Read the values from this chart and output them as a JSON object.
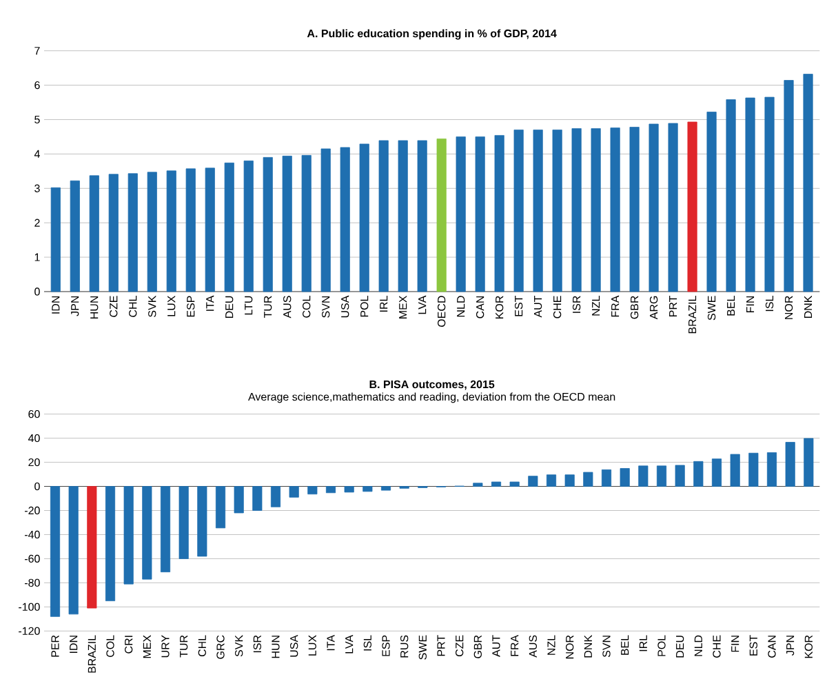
{
  "chart_data": [
    {
      "type": "bar",
      "title": "A. Public education spending in % of GDP, 2014",
      "categories": [
        "IDN",
        "JPN",
        "HUN",
        "CZE",
        "CHL",
        "SVK",
        "LUX",
        "ESP",
        "ITA",
        "DEU",
        "LTU",
        "TUR",
        "AUS",
        "COL",
        "SVN",
        "USA",
        "POL",
        "IRL",
        "MEX",
        "LVA",
        "OECD",
        "NLD",
        "CAN",
        "KOR",
        "EST",
        "AUT",
        "CHE",
        "ISR",
        "NZL",
        "FRA",
        "GBR",
        "ARG",
        "PRT",
        "BRAZIL",
        "SWE",
        "BEL",
        "FIN",
        "ISL",
        "NOR",
        "DNK"
      ],
      "values": [
        3.02,
        3.22,
        3.37,
        3.41,
        3.43,
        3.47,
        3.51,
        3.57,
        3.59,
        3.74,
        3.8,
        3.9,
        3.94,
        3.96,
        4.15,
        4.19,
        4.29,
        4.39,
        4.39,
        4.39,
        4.44,
        4.5,
        4.5,
        4.54,
        4.7,
        4.7,
        4.7,
        4.74,
        4.74,
        4.76,
        4.78,
        4.87,
        4.89,
        4.93,
        5.22,
        5.58,
        5.63,
        5.65,
        6.14,
        6.32
      ],
      "colors": [
        "#1f6fb0",
        "#1f6fb0",
        "#1f6fb0",
        "#1f6fb0",
        "#1f6fb0",
        "#1f6fb0",
        "#1f6fb0",
        "#1f6fb0",
        "#1f6fb0",
        "#1f6fb0",
        "#1f6fb0",
        "#1f6fb0",
        "#1f6fb0",
        "#1f6fb0",
        "#1f6fb0",
        "#1f6fb0",
        "#1f6fb0",
        "#1f6fb0",
        "#1f6fb0",
        "#1f6fb0",
        "#8cc63f",
        "#1f6fb0",
        "#1f6fb0",
        "#1f6fb0",
        "#1f6fb0",
        "#1f6fb0",
        "#1f6fb0",
        "#1f6fb0",
        "#1f6fb0",
        "#1f6fb0",
        "#1f6fb0",
        "#1f6fb0",
        "#1f6fb0",
        "#e0262a",
        "#1f6fb0",
        "#1f6fb0",
        "#1f6fb0",
        "#1f6fb0",
        "#1f6fb0",
        "#1f6fb0"
      ],
      "ylim": [
        0,
        7
      ],
      "yticks": [
        0,
        1,
        2,
        3,
        4,
        5,
        6,
        7
      ],
      "grid": "y"
    },
    {
      "type": "bar",
      "title": "B. PISA  outcomes,  2015",
      "subtitle": "Average science,mathematics and reading, deviation from the OECD mean",
      "categories": [
        "PER",
        "IDN",
        "BRAZIL",
        "COL",
        "CRI",
        "MEX",
        "URY",
        "TUR",
        "CHL",
        "GRC",
        "SVK",
        "ISR",
        "HUN",
        "USA",
        "LUX",
        "ITA",
        "LVA",
        "ISL",
        "ESP",
        "RUS",
        "SWE",
        "PRT",
        "CZE",
        "GBR",
        "AUT",
        "FRA",
        "AUS",
        "NZL",
        "NOR",
        "DNK",
        "SVN",
        "BEL",
        "IRL",
        "POL",
        "DEU",
        "NLD",
        "CHE",
        "FIN",
        "EST",
        "CAN",
        "JPN",
        "KOR"
      ],
      "values": [
        -108,
        -106,
        -101,
        -95,
        -81,
        -77,
        -71,
        -60,
        -58,
        -34.5,
        -22,
        -20,
        -17,
        -9,
        -6.4,
        -5.3,
        -4.8,
        -4.2,
        -3.2,
        -1.6,
        -1.1,
        -0.5,
        0.3,
        2.7,
        3.7,
        3.7,
        8.5,
        9.6,
        9.6,
        11.7,
        13.8,
        14.9,
        17,
        17,
        17.5,
        20.7,
        22.8,
        26.6,
        27.6,
        28,
        36.6,
        39.8
      ],
      "colors": [
        "#1f6fb0",
        "#1f6fb0",
        "#e0262a",
        "#1f6fb0",
        "#1f6fb0",
        "#1f6fb0",
        "#1f6fb0",
        "#1f6fb0",
        "#1f6fb0",
        "#1f6fb0",
        "#1f6fb0",
        "#1f6fb0",
        "#1f6fb0",
        "#1f6fb0",
        "#1f6fb0",
        "#1f6fb0",
        "#1f6fb0",
        "#1f6fb0",
        "#1f6fb0",
        "#1f6fb0",
        "#1f6fb0",
        "#1f6fb0",
        "#1f6fb0",
        "#1f6fb0",
        "#1f6fb0",
        "#1f6fb0",
        "#1f6fb0",
        "#1f6fb0",
        "#1f6fb0",
        "#1f6fb0",
        "#1f6fb0",
        "#1f6fb0",
        "#1f6fb0",
        "#1f6fb0",
        "#1f6fb0",
        "#1f6fb0",
        "#1f6fb0",
        "#1f6fb0",
        "#1f6fb0",
        "#1f6fb0",
        "#1f6fb0",
        "#1f6fb0"
      ],
      "ylim": [
        -120,
        60
      ],
      "yticks": [
        -120,
        -100,
        -80,
        -60,
        -40,
        -20,
        0,
        20,
        40,
        60
      ],
      "grid": "y"
    }
  ]
}
